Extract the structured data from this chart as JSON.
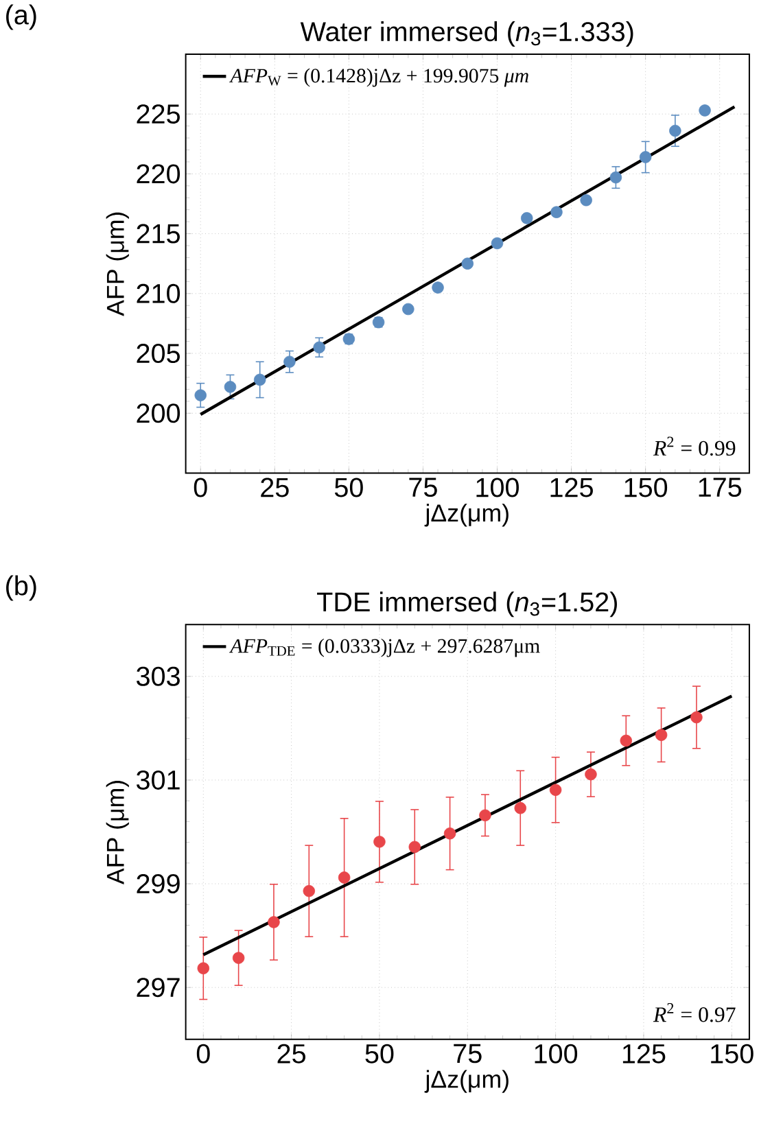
{
  "chart_data": [
    {
      "type": "scatter",
      "title": "Water immersed (*n*$_{3}$=1.333)",
      "xlabel": "jΔz(μm)",
      "ylabel": "AFP (μm)",
      "annotations": [
        "(a)",
        "*R*$^{2}$ = 0.99"
      ],
      "xlim": [
        -5,
        185
      ],
      "ylim": [
        195,
        230
      ],
      "xticks": [
        0,
        25,
        50,
        75,
        100,
        125,
        150,
        175
      ],
      "yticks": [
        200,
        205,
        210,
        215,
        220,
        225
      ],
      "grid": true,
      "legend": "top left",
      "series": [
        {
          "color": "#5b8cc0",
          "x": [
            0,
            10,
            20,
            30,
            40,
            50,
            60,
            70,
            80,
            90,
            100,
            110,
            120,
            130,
            140,
            150,
            160,
            170
          ],
          "values": [
            201.5,
            202.2,
            202.8,
            204.3,
            205.5,
            206.2,
            207.6,
            208.7,
            210.5,
            212.5,
            214.2,
            216.3,
            216.8,
            217.8,
            219.7,
            221.4,
            223.6,
            225.3
          ],
          "errors": [
            1.0,
            1.0,
            1.5,
            0.9,
            0.8,
            0.4,
            0.4,
            0.3,
            0.3,
            0.3,
            0.3,
            0.3,
            0.3,
            0.3,
            0.9,
            1.3,
            1.3,
            0.3
          ]
        },
        {
          "type": "line",
          "name": "*AFP*$_{W}$ = (0.1428)jΔz + 199.9075 *μm*",
          "color": "#000000",
          "x": [
            0,
            180
          ],
          "values": [
            199.9,
            225.6
          ]
        }
      ]
    },
    {
      "type": "scatter",
      "title": "TDE immersed (*n*$_{3}$=1.52)",
      "xlabel": "jΔz(μm)",
      "ylabel": "AFP (μm)",
      "annotations": [
        "(b)",
        "*R*$^{2}$ = 0.97"
      ],
      "xlim": [
        -5,
        155
      ],
      "ylim": [
        296,
        304
      ],
      "xticks": [
        0,
        25,
        50,
        75,
        100,
        125,
        150
      ],
      "yticks": [
        297,
        299,
        301,
        303
      ],
      "grid": true,
      "legend": "top left",
      "series": [
        {
          "color": "#e8464a",
          "x": [
            0,
            10,
            20,
            30,
            40,
            50,
            60,
            70,
            80,
            90,
            100,
            110,
            120,
            130,
            140
          ],
          "values": [
            297.37,
            297.57,
            298.26,
            298.86,
            299.12,
            299.81,
            299.71,
            299.97,
            300.32,
            300.46,
            300.81,
            301.11,
            301.76,
            301.87,
            302.21
          ],
          "errors": [
            0.6,
            0.53,
            0.73,
            0.88,
            1.14,
            0.78,
            0.72,
            0.7,
            0.4,
            0.72,
            0.63,
            0.43,
            0.48,
            0.52,
            0.6
          ]
        },
        {
          "type": "line",
          "name": "*AFP*$_{TDE}$ = (0.0333)jΔz + 297.6287μm",
          "color": "#000000",
          "x": [
            0,
            150
          ],
          "values": [
            297.63,
            302.62
          ]
        }
      ]
    }
  ]
}
